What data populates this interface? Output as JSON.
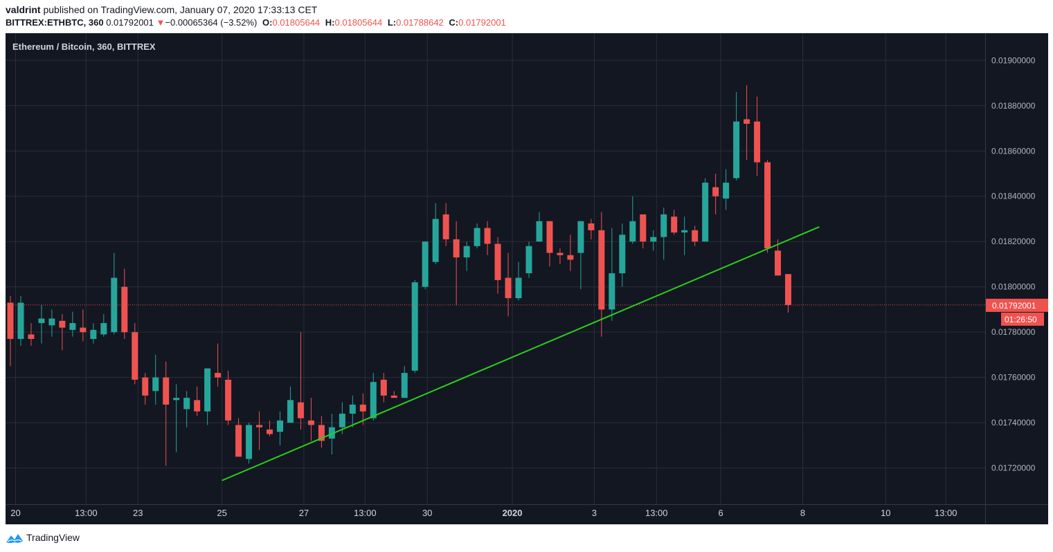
{
  "header": {
    "author": "valdrint",
    "published_text": "published on TradingView.com, January 07, 2020 17:33:13 CET",
    "symbol": "BITTREX:ETHBTC, 360",
    "last_price": "0.01792001",
    "change_arrow": "▼",
    "change": "−0.00065364 (−3.52%)",
    "open_label": "O:",
    "open_value": "0.01805644",
    "high_label": "H:",
    "high_value": "0.01805644",
    "low_label": "L:",
    "low_value": "0.01788642",
    "close_label": "C:",
    "close_value": "0.01792001"
  },
  "chart_title": "Ethereum / Bitcoin, 360, BITTREX",
  "footer": {
    "brand": "TradingView"
  },
  "colors": {
    "background": "#131722",
    "grid": "#2a2e39",
    "up": "#26a69a",
    "down": "#ef5350",
    "trendline": "#2ad01a",
    "text": "#b2b5be"
  },
  "chart_data": {
    "type": "candlestick",
    "title": "Ethereum / Bitcoin, 360, BITTREX",
    "interval": "360",
    "exchange": "BITTREX",
    "ylim": [
      0.01704,
      0.01912
    ],
    "y_ticks": [
      "0.01720000",
      "0.01740000",
      "0.01760000",
      "0.01780000",
      "0.01800000",
      "0.01820000",
      "0.01840000",
      "0.01860000",
      "0.01880000",
      "0.01900000"
    ],
    "x_ticks": [
      {
        "label": "20",
        "index": 0.5,
        "bold": false
      },
      {
        "label": "13:00",
        "index": 7.3,
        "bold": false
      },
      {
        "label": "23",
        "index": 12.3,
        "bold": false
      },
      {
        "label": "25",
        "index": 20.4,
        "bold": false
      },
      {
        "label": "27",
        "index": 28.3,
        "bold": false
      },
      {
        "label": "13:00",
        "index": 34.2,
        "bold": false
      },
      {
        "label": "30",
        "index": 40.2,
        "bold": false
      },
      {
        "label": "2020",
        "index": 48.4,
        "bold": true
      },
      {
        "label": "3",
        "index": 56.3,
        "bold": false
      },
      {
        "label": "13:00",
        "index": 62.3,
        "bold": false
      },
      {
        "label": "6",
        "index": 68.5,
        "bold": false
      },
      {
        "label": "8",
        "index": 76.4,
        "bold": false
      },
      {
        "label": "10",
        "index": 84.4,
        "bold": false
      },
      {
        "label": "13:00",
        "index": 90.2,
        "bold": false
      }
    ],
    "grid": true,
    "candles": [
      [
        0.01793,
        0.01796,
        0.01765,
        0.01777
      ],
      [
        0.01777,
        0.01796,
        0.01774,
        0.01793
      ],
      [
        0.01779,
        0.01784,
        0.01774,
        0.01777
      ],
      [
        0.01784,
        0.01792,
        0.01775,
        0.01786
      ],
      [
        0.01783,
        0.0179,
        0.01778,
        0.01786
      ],
      [
        0.01785,
        0.01788,
        0.01772,
        0.01782
      ],
      [
        0.01781,
        0.01789,
        0.01778,
        0.01784
      ],
      [
        0.01782,
        0.0179,
        0.01776,
        0.0178
      ],
      [
        0.01777,
        0.01784,
        0.01775,
        0.01781
      ],
      [
        0.01779,
        0.01788,
        0.01778,
        0.01784
      ],
      [
        0.0178,
        0.01815,
        0.01779,
        0.01804
      ],
      [
        0.018,
        0.01808,
        0.01777,
        0.0178
      ],
      [
        0.0178,
        0.01784,
        0.01757,
        0.01759
      ],
      [
        0.0176,
        0.01762,
        0.01748,
        0.01752
      ],
      [
        0.01754,
        0.0177,
        0.01748,
        0.0176
      ],
      [
        0.0176,
        0.01767,
        0.01721,
        0.01748
      ],
      [
        0.0175,
        0.01757,
        0.01727,
        0.01751
      ],
      [
        0.01746,
        0.01754,
        0.01738,
        0.01751
      ],
      [
        0.0175,
        0.01756,
        0.01743,
        0.01745
      ],
      [
        0.01745,
        0.01764,
        0.01739,
        0.01764
      ],
      [
        0.01762,
        0.01775,
        0.01756,
        0.0176
      ],
      [
        0.01759,
        0.01763,
        0.01739,
        0.01741
      ],
      [
        0.01739,
        0.01742,
        0.01725,
        0.01725
      ],
      [
        0.01724,
        0.0174,
        0.01722,
        0.01739
      ],
      [
        0.01739,
        0.01745,
        0.01728,
        0.01738
      ],
      [
        0.01737,
        0.01741,
        0.01734,
        0.01735
      ],
      [
        0.01736,
        0.01745,
        0.0173,
        0.01741
      ],
      [
        0.0174,
        0.01756,
        0.0174,
        0.0175
      ],
      [
        0.01749,
        0.0178,
        0.01737,
        0.01742
      ],
      [
        0.01741,
        0.01751,
        0.01732,
        0.01739
      ],
      [
        0.01739,
        0.01743,
        0.01729,
        0.01732
      ],
      [
        0.01733,
        0.01744,
        0.01726,
        0.01738
      ],
      [
        0.01738,
        0.01749,
        0.01735,
        0.01744
      ],
      [
        0.01744,
        0.01752,
        0.01738,
        0.01748
      ],
      [
        0.01748,
        0.01753,
        0.01739,
        0.01745
      ],
      [
        0.01742,
        0.01762,
        0.01741,
        0.01758
      ],
      [
        0.01759,
        0.01762,
        0.01749,
        0.01752
      ],
      [
        0.01752,
        0.01754,
        0.01751,
        0.01751
      ],
      [
        0.01751,
        0.01765,
        0.01751,
        0.01762
      ],
      [
        0.01763,
        0.01803,
        0.01762,
        0.01802
      ],
      [
        0.018,
        0.0182,
        0.01799,
        0.0182
      ],
      [
        0.01811,
        0.01837,
        0.0181,
        0.0183
      ],
      [
        0.01832,
        0.01837,
        0.01818,
        0.01821
      ],
      [
        0.01821,
        0.01829,
        0.01792,
        0.01813
      ],
      [
        0.01813,
        0.0182,
        0.01807,
        0.01818
      ],
      [
        0.01818,
        0.01828,
        0.01817,
        0.01826
      ],
      [
        0.01826,
        0.01829,
        0.01814,
        0.01819
      ],
      [
        0.01819,
        0.01822,
        0.01797,
        0.01803
      ],
      [
        0.01804,
        0.01815,
        0.01787,
        0.01795
      ],
      [
        0.01795,
        0.01811,
        0.01794,
        0.01804
      ],
      [
        0.01806,
        0.0182,
        0.01804,
        0.01818
      ],
      [
        0.0182,
        0.01833,
        0.0182,
        0.01829
      ],
      [
        0.01829,
        0.01829,
        0.01809,
        0.01815
      ],
      [
        0.01815,
        0.01817,
        0.0181,
        0.01814
      ],
      [
        0.01814,
        0.01823,
        0.01807,
        0.01812
      ],
      [
        0.01815,
        0.01829,
        0.01799,
        0.01829
      ],
      [
        0.01828,
        0.0183,
        0.01821,
        0.01825
      ],
      [
        0.01825,
        0.01833,
        0.01778,
        0.0179
      ],
      [
        0.0179,
        0.01826,
        0.01785,
        0.01806
      ],
      [
        0.01806,
        0.01828,
        0.018,
        0.01823
      ],
      [
        0.0182,
        0.0184,
        0.01819,
        0.01829
      ],
      [
        0.01832,
        0.01832,
        0.01817,
        0.0182
      ],
      [
        0.0182,
        0.01825,
        0.01816,
        0.01822
      ],
      [
        0.01822,
        0.01835,
        0.01812,
        0.01832
      ],
      [
        0.01831,
        0.01834,
        0.01823,
        0.01824
      ],
      [
        0.01824,
        0.01831,
        0.01814,
        0.01825
      ],
      [
        0.01825,
        0.01827,
        0.01818,
        0.0182
      ],
      [
        0.0182,
        0.01848,
        0.0182,
        0.01846
      ],
      [
        0.01844,
        0.0185,
        0.01832,
        0.0184
      ],
      [
        0.01839,
        0.01852,
        0.01834,
        0.01846
      ],
      [
        0.01848,
        0.01886,
        0.01847,
        0.01873
      ],
      [
        0.01874,
        0.01889,
        0.01856,
        0.01872
      ],
      [
        0.01873,
        0.01884,
        0.01849,
        0.01855
      ],
      [
        0.01855,
        0.01856,
        0.01815,
        0.01817
      ],
      [
        0.01816,
        0.01821,
        0.01805,
        0.01805
      ],
      [
        0.01805644,
        0.01805644,
        0.01788642,
        0.01792001
      ]
    ],
    "trendline": {
      "from": {
        "index": 20.4,
        "price": 0.017145
      },
      "to": {
        "index": 78.0,
        "price": 0.018265
      },
      "color": "#2ad01a"
    },
    "last_price_line": {
      "price": 0.01792001,
      "label": "0.01792001"
    },
    "countdown": "01:26:50"
  }
}
